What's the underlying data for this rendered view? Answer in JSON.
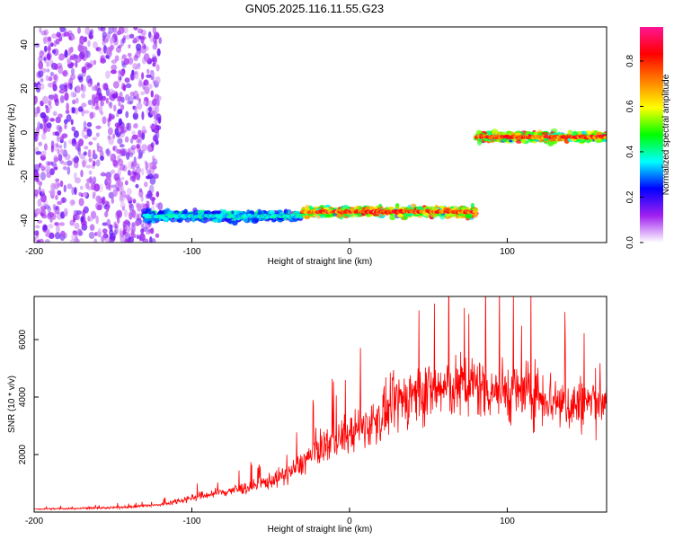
{
  "title": "GN05.2025.116.11.55.G23",
  "chart_data": [
    {
      "type": "heatmap",
      "xlabel": "Height of straight line (km)",
      "ylabel": "Frequency (Hz)",
      "xlim": [
        -200,
        163
      ],
      "ylim": [
        -50,
        48
      ],
      "xticks": [
        -200,
        -100,
        0,
        100
      ],
      "yticks": [
        -40,
        -20,
        0,
        20,
        40
      ],
      "colorbar": {
        "label": "Normalized spectral amplitude",
        "range": [
          0,
          0.95
        ],
        "ticks": [
          "0.0",
          "0.2",
          "0.4",
          "0.6",
          "0.8"
        ],
        "colors": [
          "#ffffff",
          "#a020f0",
          "#0000ff",
          "#00ffff",
          "#00ff00",
          "#ffff00",
          "#ff8000",
          "#ff0000",
          "#ff1493"
        ]
      },
      "tracks": [
        {
          "x_start": -130,
          "x_end": -30,
          "frequency": -38,
          "amplitude": 0.4
        },
        {
          "x_start": -30,
          "x_end": 80,
          "frequency": -36,
          "amplitude": 0.85
        },
        {
          "x_start": 80,
          "x_end": 163,
          "frequency": -2,
          "amplitude": 0.85
        }
      ],
      "noise_region": {
        "x_start": -200,
        "x_end": -120,
        "amplitude": 0.15
      }
    },
    {
      "type": "line",
      "xlabel": "Height of straight line (km)",
      "ylabel": "SNR (10 * v/v)",
      "xlim": [
        -200,
        163
      ],
      "ylim": [
        0,
        7500
      ],
      "xticks": [
        -200,
        -100,
        0,
        100
      ],
      "yticks": [
        2000,
        4000,
        6000
      ],
      "color": "#ff0000",
      "x": [
        -200,
        -150,
        -120,
        -100,
        -80,
        -60,
        -40,
        -30,
        -20,
        -10,
        0,
        10,
        20,
        30,
        40,
        60,
        80,
        100,
        120,
        130,
        140,
        150,
        163
      ],
      "values": [
        100,
        150,
        250,
        500,
        700,
        900,
        1300,
        1700,
        2200,
        2500,
        2700,
        3000,
        3300,
        3800,
        4100,
        4300,
        4400,
        4200,
        4100,
        3900,
        3700,
        3800,
        4000
      ]
    }
  ]
}
